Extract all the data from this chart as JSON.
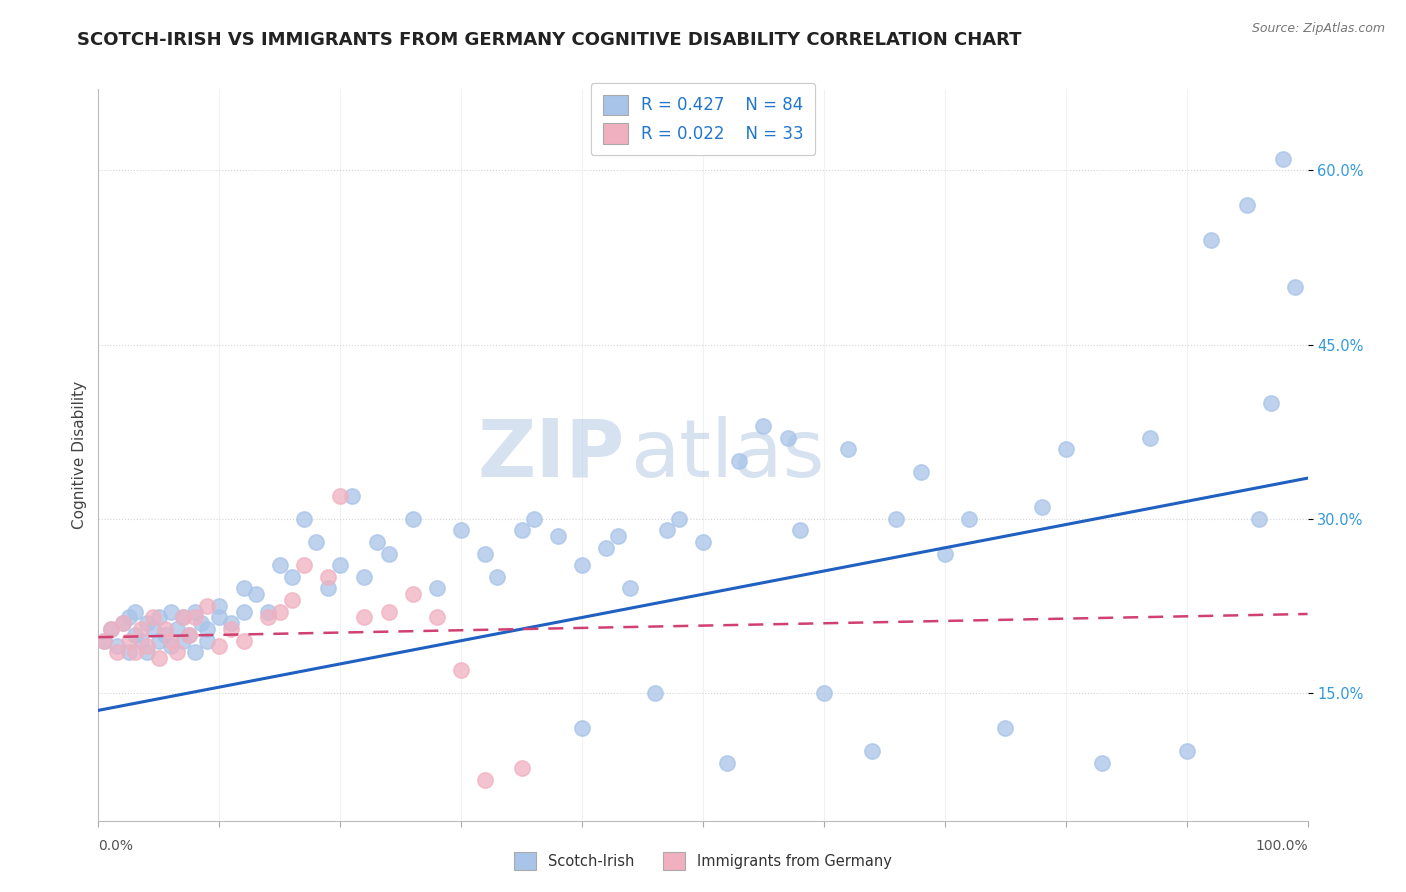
{
  "title": "SCOTCH-IRISH VS IMMIGRANTS FROM GERMANY COGNITIVE DISABILITY CORRELATION CHART",
  "source": "Source: ZipAtlas.com",
  "ylabel": "Cognitive Disability",
  "y_ticks": [
    0.15,
    0.3,
    0.45,
    0.6
  ],
  "xlim": [
    0.0,
    1.0
  ],
  "ylim": [
    0.04,
    0.67
  ],
  "series1_name": "Scotch-Irish",
  "series1_R": 0.427,
  "series1_N": 84,
  "series1_color": "#a8c4e8",
  "series1_edge_color": "#7aaad4",
  "series1_line_color": "#2060c0",
  "series2_name": "Immigrants from Germany",
  "series2_R": 0.022,
  "series2_N": 33,
  "series2_color": "#f0b0c0",
  "series2_edge_color": "#d88090",
  "series2_line_color": "#d04070",
  "background_color": "#ffffff",
  "grid_color": "#d0d0d0",
  "watermark": "ZIPAtlas",
  "watermark_color": "#bdd0e8",
  "title_fontsize": 13,
  "line1_x0": 0.0,
  "line1_y0": 0.135,
  "line1_x1": 1.0,
  "line1_y1": 0.335,
  "line2_x0": 0.0,
  "line2_y0": 0.198,
  "line2_x1": 1.0,
  "line2_y1": 0.218,
  "scatter1_x": [
    0.005,
    0.01,
    0.015,
    0.02,
    0.025,
    0.025,
    0.03,
    0.03,
    0.035,
    0.04,
    0.04,
    0.045,
    0.05,
    0.05,
    0.055,
    0.06,
    0.06,
    0.065,
    0.07,
    0.07,
    0.075,
    0.08,
    0.08,
    0.085,
    0.09,
    0.09,
    0.1,
    0.1,
    0.11,
    0.12,
    0.12,
    0.13,
    0.14,
    0.15,
    0.16,
    0.17,
    0.18,
    0.19,
    0.2,
    0.21,
    0.22,
    0.23,
    0.24,
    0.26,
    0.28,
    0.3,
    0.32,
    0.33,
    0.35,
    0.36,
    0.38,
    0.4,
    0.4,
    0.42,
    0.43,
    0.44,
    0.46,
    0.47,
    0.48,
    0.5,
    0.52,
    0.53,
    0.55,
    0.57,
    0.58,
    0.6,
    0.62,
    0.64,
    0.66,
    0.68,
    0.7,
    0.72,
    0.75,
    0.78,
    0.8,
    0.83,
    0.87,
    0.9,
    0.92,
    0.95,
    0.96,
    0.97,
    0.98,
    0.99
  ],
  "scatter1_y": [
    0.195,
    0.205,
    0.19,
    0.21,
    0.185,
    0.215,
    0.2,
    0.22,
    0.195,
    0.185,
    0.21,
    0.205,
    0.195,
    0.215,
    0.2,
    0.19,
    0.22,
    0.205,
    0.195,
    0.215,
    0.2,
    0.185,
    0.22,
    0.21,
    0.195,
    0.205,
    0.215,
    0.225,
    0.21,
    0.22,
    0.24,
    0.235,
    0.22,
    0.26,
    0.25,
    0.3,
    0.28,
    0.24,
    0.26,
    0.32,
    0.25,
    0.28,
    0.27,
    0.3,
    0.24,
    0.29,
    0.27,
    0.25,
    0.29,
    0.3,
    0.285,
    0.26,
    0.12,
    0.275,
    0.285,
    0.24,
    0.15,
    0.29,
    0.3,
    0.28,
    0.09,
    0.35,
    0.38,
    0.37,
    0.29,
    0.15,
    0.36,
    0.1,
    0.3,
    0.34,
    0.27,
    0.3,
    0.12,
    0.31,
    0.36,
    0.09,
    0.37,
    0.1,
    0.54,
    0.57,
    0.3,
    0.4,
    0.61,
    0.5
  ],
  "scatter2_x": [
    0.005,
    0.01,
    0.015,
    0.02,
    0.025,
    0.03,
    0.035,
    0.04,
    0.045,
    0.05,
    0.055,
    0.06,
    0.065,
    0.07,
    0.075,
    0.08,
    0.09,
    0.1,
    0.11,
    0.12,
    0.14,
    0.15,
    0.16,
    0.17,
    0.19,
    0.2,
    0.22,
    0.24,
    0.26,
    0.28,
    0.3,
    0.32,
    0.35
  ],
  "scatter2_y": [
    0.195,
    0.205,
    0.185,
    0.21,
    0.195,
    0.185,
    0.205,
    0.19,
    0.215,
    0.18,
    0.205,
    0.195,
    0.185,
    0.215,
    0.2,
    0.215,
    0.225,
    0.19,
    0.205,
    0.195,
    0.215,
    0.22,
    0.23,
    0.26,
    0.25,
    0.32,
    0.215,
    0.22,
    0.235,
    0.215,
    0.17,
    0.075,
    0.085
  ]
}
